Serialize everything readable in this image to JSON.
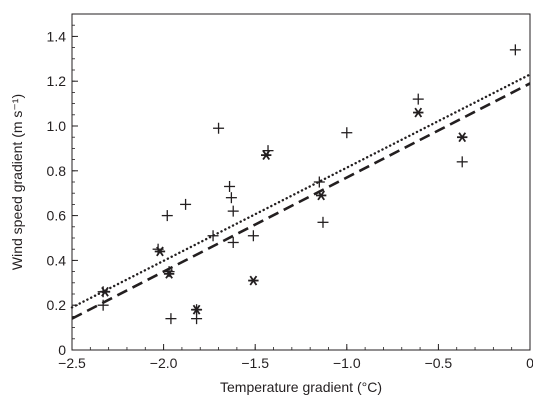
{
  "chart_data": {
    "type": "scatter",
    "xlabel": "Temperature gradient (°C)",
    "ylabel": "Wind speed gradient (m s⁻¹)",
    "xlim": [
      -2.5,
      0
    ],
    "ylim": [
      0,
      1.5
    ],
    "x_ticks": [
      -2.5,
      -2.0,
      -1.5,
      -1.0,
      -0.5,
      0
    ],
    "x_tick_labels": [
      "−2.5",
      "−2.0",
      "−1.5",
      "−1.0",
      "−0.5",
      "0"
    ],
    "y_ticks": [
      0,
      0.2,
      0.4,
      0.6,
      0.8,
      1.0,
      1.2,
      1.4
    ],
    "y_tick_labels": [
      "0",
      "0.2",
      "0.4",
      "0.6",
      "0.8",
      "1.0",
      "1.2",
      "1.4"
    ],
    "grid": false,
    "legend": "none",
    "series": [
      {
        "marker": "plus",
        "points": [
          {
            "x": -2.33,
            "y": 0.2
          },
          {
            "x": -2.33,
            "y": 0.26
          },
          {
            "x": -2.03,
            "y": 0.45
          },
          {
            "x": -1.98,
            "y": 0.6
          },
          {
            "x": -1.97,
            "y": 0.35
          },
          {
            "x": -1.96,
            "y": 0.14
          },
          {
            "x": -1.88,
            "y": 0.65
          },
          {
            "x": -1.82,
            "y": 0.18
          },
          {
            "x": -1.82,
            "y": 0.14
          },
          {
            "x": -1.73,
            "y": 0.51
          },
          {
            "x": -1.7,
            "y": 0.99
          },
          {
            "x": -1.64,
            "y": 0.73
          },
          {
            "x": -1.63,
            "y": 0.68
          },
          {
            "x": -1.62,
            "y": 0.62
          },
          {
            "x": -1.62,
            "y": 0.48
          },
          {
            "x": -1.51,
            "y": 0.51
          },
          {
            "x": -1.43,
            "y": 0.89
          },
          {
            "x": -1.15,
            "y": 0.75
          },
          {
            "x": -1.13,
            "y": 0.57
          },
          {
            "x": -1.0,
            "y": 0.97
          },
          {
            "x": -0.61,
            "y": 1.12
          },
          {
            "x": -0.37,
            "y": 0.84
          },
          {
            "x": -0.08,
            "y": 1.34
          }
        ]
      },
      {
        "marker": "asterisk",
        "points": [
          {
            "x": -2.32,
            "y": 0.26
          },
          {
            "x": -2.02,
            "y": 0.44
          },
          {
            "x": -1.97,
            "y": 0.34
          },
          {
            "x": -1.82,
            "y": 0.18
          },
          {
            "x": -1.51,
            "y": 0.31
          },
          {
            "x": -1.44,
            "y": 0.87
          },
          {
            "x": -1.14,
            "y": 0.69
          },
          {
            "x": -0.61,
            "y": 1.06
          },
          {
            "x": -0.37,
            "y": 0.95
          }
        ]
      }
    ],
    "fit_lines": [
      {
        "style": "dotted",
        "x": [
          -2.5,
          0
        ],
        "y": [
          0.19,
          1.23
        ]
      },
      {
        "style": "dashed",
        "x": [
          -2.5,
          0
        ],
        "y": [
          0.14,
          1.19
        ]
      }
    ]
  }
}
